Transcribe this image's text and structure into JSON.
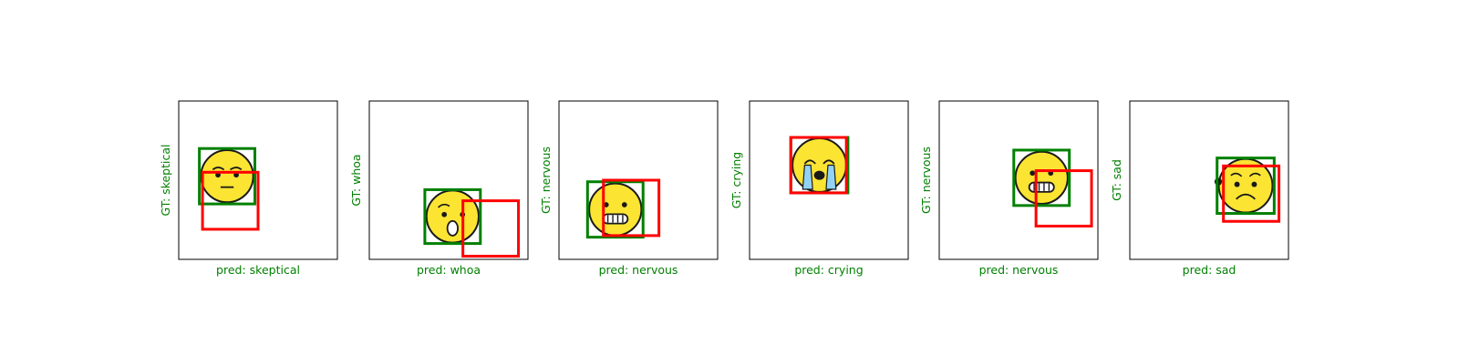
{
  "colors": {
    "gt_box": "#008000",
    "pred_box": "#ff0000",
    "label_text": "#008000",
    "face_fill": "#fce433",
    "face_stroke": "#1a1a1a",
    "tear": "#92d3f5"
  },
  "chart_data": [
    {
      "type": "image_with_boxes",
      "emoji": "skeptical",
      "icon": "skeptical-face-icon",
      "gt_label": "GT: skeptical",
      "pred_label": "pred: skeptical",
      "gt_box": [
        0.13,
        0.3,
        0.48,
        0.65
      ],
      "pred_box": [
        0.15,
        0.45,
        0.5,
        0.81
      ]
    },
    {
      "type": "image_with_boxes",
      "emoji": "whoa",
      "icon": "whoa-face-icon",
      "gt_label": "GT: whoa",
      "pred_label": "pred: whoa",
      "gt_box": [
        0.35,
        0.56,
        0.7,
        0.9
      ],
      "pred_box": [
        0.59,
        0.63,
        0.94,
        0.98
      ]
    },
    {
      "type": "image_with_boxes",
      "emoji": "nervous",
      "icon": "nervous-face-icon",
      "gt_label": "GT: nervous",
      "pred_label": "pred: nervous",
      "gt_box": [
        0.18,
        0.51,
        0.53,
        0.86
      ],
      "pred_box": [
        0.28,
        0.5,
        0.63,
        0.85
      ]
    },
    {
      "type": "image_with_boxes",
      "emoji": "crying",
      "icon": "crying-face-icon",
      "gt_label": "GT: crying",
      "pred_label": "pred: crying",
      "gt_box": [
        0.26,
        0.23,
        0.62,
        0.58
      ],
      "pred_box": [
        0.26,
        0.23,
        0.61,
        0.58
      ]
    },
    {
      "type": "image_with_boxes",
      "emoji": "nervous",
      "icon": "nervous-face-icon",
      "gt_label": "GT: nervous",
      "pred_label": "pred: nervous",
      "gt_box": [
        0.47,
        0.31,
        0.82,
        0.66
      ],
      "pred_box": [
        0.61,
        0.44,
        0.96,
        0.79
      ]
    },
    {
      "type": "image_with_boxes",
      "emoji": "sad",
      "icon": "sad-face-icon",
      "gt_label": "GT: sad",
      "pred_label": "pred: sad",
      "gt_box": [
        0.55,
        0.36,
        0.91,
        0.71
      ],
      "pred_box": [
        0.59,
        0.41,
        0.94,
        0.76
      ]
    }
  ]
}
